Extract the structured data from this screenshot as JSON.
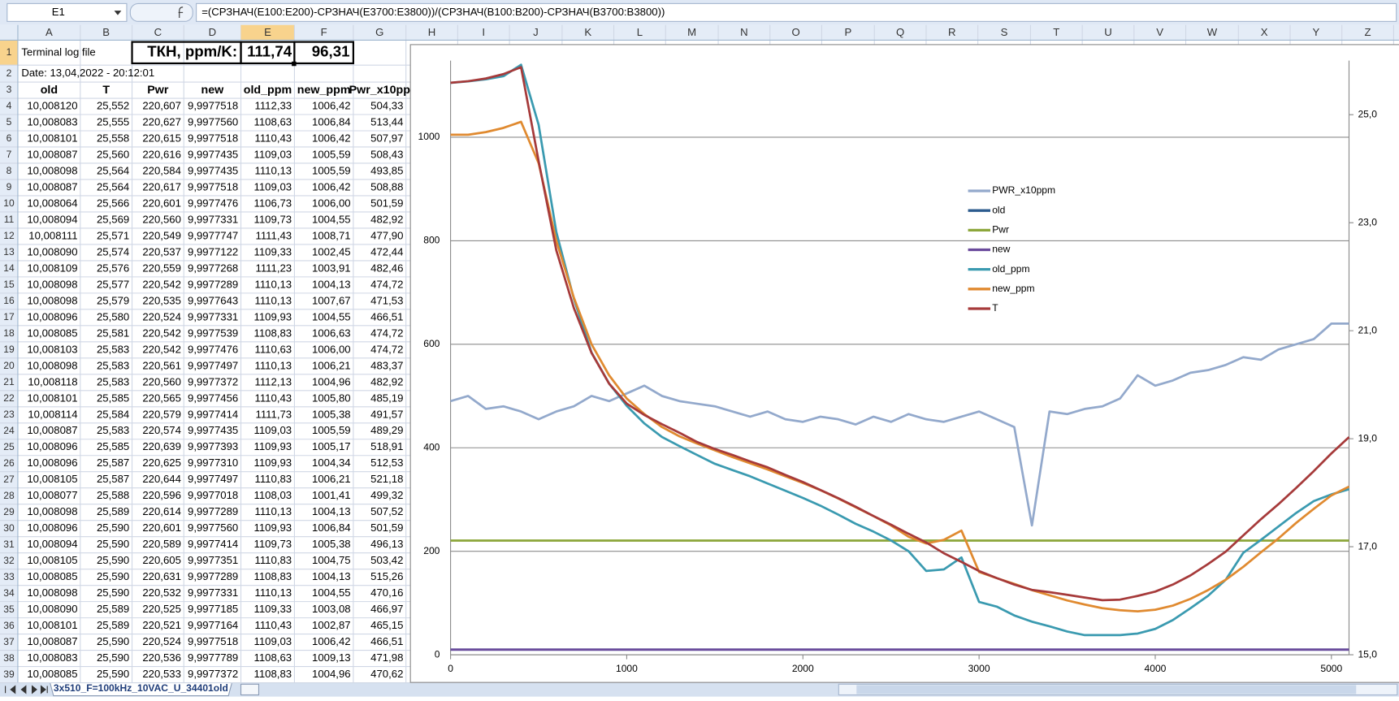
{
  "sheet": {
    "name_box": "E1",
    "formula": "=(СРЗНАЧ(E100:E200)-СРЗНАЧ(E3700:E3800))/(СРЗНАЧ(B100:B200)-СРЗНАЧ(B3700:B3800))",
    "columns": [
      "A",
      "B",
      "C",
      "D",
      "E",
      "F",
      "G",
      "H",
      "I",
      "J",
      "K",
      "L",
      "M",
      "N",
      "O",
      "P",
      "Q",
      "R",
      "S",
      "T",
      "U",
      "V",
      "W",
      "X",
      "Y",
      "Z"
    ],
    "row_numbers": [
      1,
      2,
      3,
      4,
      5,
      6,
      7,
      8,
      9,
      10,
      11,
      12,
      13,
      14,
      15,
      16,
      17,
      18,
      19,
      20,
      21,
      22,
      23,
      24,
      25,
      26,
      27,
      28,
      29,
      30,
      31,
      32,
      33,
      34,
      35,
      36,
      37,
      38,
      39
    ],
    "row1": {
      "title": "Terminal log file",
      "label": "ТКН, ppm/K:",
      "old_tkn": "111,74",
      "new_tkn": "96,31"
    },
    "row2": "Date: 13,04,2022 - 20:12:01",
    "header": [
      "old",
      "T",
      "Pwr",
      "new",
      "old_ppm",
      "new_ppm",
      "Pwr_x10pp"
    ],
    "rows": [
      [
        "10,008120",
        "25,552",
        "220,607",
        "9,9977518",
        "1112,33",
        "1006,42",
        "504,33"
      ],
      [
        "10,008083",
        "25,555",
        "220,627",
        "9,9977560",
        "1108,63",
        "1006,84",
        "513,44"
      ],
      [
        "10,008101",
        "25,558",
        "220,615",
        "9,9977518",
        "1110,43",
        "1006,42",
        "507,97"
      ],
      [
        "10,008087",
        "25,560",
        "220,616",
        "9,9977435",
        "1109,03",
        "1005,59",
        "508,43"
      ],
      [
        "10,008098",
        "25,564",
        "220,584",
        "9,9977435",
        "1110,13",
        "1005,59",
        "493,85"
      ],
      [
        "10,008087",
        "25,564",
        "220,617",
        "9,9977518",
        "1109,03",
        "1006,42",
        "508,88"
      ],
      [
        "10,008064",
        "25,566",
        "220,601",
        "9,9977476",
        "1106,73",
        "1006,00",
        "501,59"
      ],
      [
        "10,008094",
        "25,569",
        "220,560",
        "9,9977331",
        "1109,73",
        "1004,55",
        "482,92"
      ],
      [
        "10,008111",
        "25,571",
        "220,549",
        "9,9977747",
        "1111,43",
        "1008,71",
        "477,90"
      ],
      [
        "10,008090",
        "25,574",
        "220,537",
        "9,9977122",
        "1109,33",
        "1002,45",
        "472,44"
      ],
      [
        "10,008109",
        "25,576",
        "220,559",
        "9,9977268",
        "1111,23",
        "1003,91",
        "482,46"
      ],
      [
        "10,008098",
        "25,577",
        "220,542",
        "9,9977289",
        "1110,13",
        "1004,13",
        "474,72"
      ],
      [
        "10,008098",
        "25,579",
        "220,535",
        "9,9977643",
        "1110,13",
        "1007,67",
        "471,53"
      ],
      [
        "10,008096",
        "25,580",
        "220,524",
        "9,9977331",
        "1109,93",
        "1004,55",
        "466,51"
      ],
      [
        "10,008085",
        "25,581",
        "220,542",
        "9,9977539",
        "1108,83",
        "1006,63",
        "474,72"
      ],
      [
        "10,008103",
        "25,583",
        "220,542",
        "9,9977476",
        "1110,63",
        "1006,00",
        "474,72"
      ],
      [
        "10,008098",
        "25,583",
        "220,561",
        "9,9977497",
        "1110,13",
        "1006,21",
        "483,37"
      ],
      [
        "10,008118",
        "25,583",
        "220,560",
        "9,9977372",
        "1112,13",
        "1004,96",
        "482,92"
      ],
      [
        "10,008101",
        "25,585",
        "220,565",
        "9,9977456",
        "1110,43",
        "1005,80",
        "485,19"
      ],
      [
        "10,008114",
        "25,584",
        "220,579",
        "9,9977414",
        "1111,73",
        "1005,38",
        "491,57"
      ],
      [
        "10,008087",
        "25,583",
        "220,574",
        "9,9977435",
        "1109,03",
        "1005,59",
        "489,29"
      ],
      [
        "10,008096",
        "25,585",
        "220,639",
        "9,9977393",
        "1109,93",
        "1005,17",
        "518,91"
      ],
      [
        "10,008096",
        "25,587",
        "220,625",
        "9,9977310",
        "1109,93",
        "1004,34",
        "512,53"
      ],
      [
        "10,008105",
        "25,587",
        "220,644",
        "9,9977497",
        "1110,83",
        "1006,21",
        "521,18"
      ],
      [
        "10,008077",
        "25,588",
        "220,596",
        "9,9977018",
        "1108,03",
        "1001,41",
        "499,32"
      ],
      [
        "10,008098",
        "25,589",
        "220,614",
        "9,9977289",
        "1110,13",
        "1004,13",
        "507,52"
      ],
      [
        "10,008096",
        "25,590",
        "220,601",
        "9,9977560",
        "1109,93",
        "1006,84",
        "501,59"
      ],
      [
        "10,008094",
        "25,590",
        "220,589",
        "9,9977414",
        "1109,73",
        "1005,38",
        "496,13"
      ],
      [
        "10,008105",
        "25,590",
        "220,605",
        "9,9977351",
        "1110,83",
        "1004,75",
        "503,42"
      ],
      [
        "10,008085",
        "25,590",
        "220,631",
        "9,9977289",
        "1108,83",
        "1004,13",
        "515,26"
      ],
      [
        "10,008098",
        "25,590",
        "220,532",
        "9,9977331",
        "1110,13",
        "1004,55",
        "470,16"
      ],
      [
        "10,008090",
        "25,589",
        "220,525",
        "9,9977185",
        "1109,33",
        "1003,08",
        "466,97"
      ],
      [
        "10,008101",
        "25,589",
        "220,521",
        "9,9977164",
        "1110,43",
        "1002,87",
        "465,15"
      ],
      [
        "10,008087",
        "25,590",
        "220,524",
        "9,9977518",
        "1109,03",
        "1006,42",
        "466,51"
      ],
      [
        "10,008083",
        "25,590",
        "220,536",
        "9,9977789",
        "1108,63",
        "1009,13",
        "471,98"
      ],
      [
        "10,008085",
        "25,590",
        "220,533",
        "9,9977372",
        "1108,83",
        "1004,96",
        "470,62"
      ]
    ],
    "tab": "3x510_F=100kHz_10VAC_U_34401old"
  },
  "chart_data": {
    "type": "line",
    "x": [
      0,
      100,
      200,
      300,
      400,
      500,
      600,
      700,
      800,
      900,
      1000,
      1100,
      1200,
      1300,
      1400,
      1500,
      1600,
      1700,
      1800,
      1900,
      2000,
      2100,
      2200,
      2300,
      2400,
      2500,
      2600,
      2700,
      2800,
      2900,
      3000,
      3100,
      3200,
      3300,
      3400,
      3500,
      3600,
      3700,
      3800,
      3900,
      4000,
      4100,
      4200,
      4300,
      4400,
      4500,
      4600,
      4700,
      4800,
      4900,
      5000,
      5100
    ],
    "xlim": [
      0,
      5100
    ],
    "xticks": [
      0,
      1000,
      2000,
      3000,
      4000,
      5000
    ],
    "ylim": [
      0,
      1148
    ],
    "yticks": [
      0,
      200,
      400,
      600,
      800,
      1000
    ],
    "y2lim": [
      15,
      26
    ],
    "y2ticks": [
      {
        "value": 15,
        "label": "15,0"
      },
      {
        "value": 17,
        "label": "17,0"
      },
      {
        "value": 19,
        "label": "19,0"
      },
      {
        "value": 21,
        "label": "21,0"
      },
      {
        "value": 23,
        "label": "23,0"
      },
      {
        "value": 25,
        "label": "25,0"
      }
    ],
    "grid": true,
    "series": [
      {
        "name": "PWR_x10ppm",
        "color": "#93a9cc",
        "values": [
          490,
          500,
          475,
          480,
          470,
          455,
          470,
          480,
          500,
          490,
          505,
          520,
          500,
          490,
          485,
          480,
          470,
          460,
          470,
          455,
          450,
          460,
          455,
          445,
          460,
          450,
          465,
          455,
          450,
          460,
          470,
          455,
          440,
          250,
          470,
          465,
          475,
          480,
          495,
          540,
          520,
          530,
          545,
          550,
          560,
          575,
          570,
          590,
          600,
          610,
          640,
          640
        ]
      },
      {
        "name": "old",
        "color": "#2c5b8e",
        "values": [
          10,
          10,
          10,
          10,
          10,
          10,
          10,
          10,
          10,
          10,
          10,
          10,
          10,
          10,
          10,
          10,
          10,
          10,
          10,
          10,
          10,
          10,
          10,
          10,
          10,
          10,
          10,
          10,
          10,
          10,
          10,
          10,
          10,
          10,
          10,
          10,
          10,
          10,
          10,
          10,
          10,
          10,
          10,
          10,
          10,
          10,
          10,
          10,
          10,
          10,
          10,
          10
        ]
      },
      {
        "name": "Pwr",
        "color": "#8ca63a",
        "values": [
          220.6,
          220.6,
          220.6,
          220.6,
          220.6,
          220.6,
          220.6,
          220.6,
          220.6,
          220.6,
          220.6,
          220.6,
          220.6,
          220.6,
          220.6,
          220.6,
          220.6,
          220.6,
          220.6,
          220.6,
          220.6,
          220.6,
          220.6,
          220.6,
          220.6,
          220.6,
          220.6,
          220.6,
          220.6,
          220.6,
          220.6,
          220.6,
          220.6,
          220.6,
          220.6,
          220.6,
          220.6,
          220.6,
          220.6,
          220.6,
          220.6,
          220.6,
          220.6,
          220.6,
          220.6,
          220.6,
          220.6,
          220.6,
          220.6,
          220.6,
          220.6,
          220.6
        ]
      },
      {
        "name": "new",
        "color": "#6a4a9c",
        "values": [
          10,
          10,
          10,
          10,
          10,
          10,
          10,
          10,
          10,
          10,
          10,
          10,
          10,
          10,
          10,
          10,
          10,
          10,
          10,
          10,
          10,
          10,
          10,
          10,
          10,
          10,
          10,
          10,
          10,
          10,
          10,
          10,
          10,
          10,
          10,
          10,
          10,
          10,
          10,
          10,
          10,
          10,
          10,
          10,
          10,
          10,
          10,
          10,
          10,
          10,
          10,
          10
        ]
      },
      {
        "name": "old_ppm",
        "color": "#3a9ab0",
        "values": [
          1105,
          1108,
          1112,
          1118,
          1140,
          1024,
          817,
          688,
          584,
          524,
          481,
          447,
          421,
          403,
          386,
          369,
          357,
          345,
          331,
          317,
          303,
          288,
          271,
          253,
          238,
          221,
          200,
          162,
          165,
          188,
          102,
          93,
          76,
          64,
          55,
          45,
          38,
          38,
          38,
          41,
          50,
          67,
          90,
          114,
          145,
          197,
          222,
          248,
          274,
          297,
          310,
          320
        ]
      },
      {
        "name": "new_ppm",
        "color": "#e08a30",
        "values": [
          1005,
          1005,
          1010,
          1018,
          1030,
          950,
          800,
          690,
          600,
          540,
          495,
          465,
          440,
          422,
          408,
          395,
          382,
          370,
          358,
          345,
          332,
          318,
          302,
          285,
          268,
          250,
          228,
          215,
          222,
          240,
          160,
          148,
          137,
          125,
          115,
          105,
          97,
          90,
          86,
          84,
          87,
          95,
          108,
          125,
          145,
          170,
          198,
          225,
          255,
          282,
          308,
          325
        ]
      },
      {
        "name": "T",
        "color": "#a63a3a",
        "axis": "y2",
        "values": [
          25.59,
          25.62,
          25.67,
          25.75,
          25.88,
          24.14,
          22.49,
          21.42,
          20.59,
          20.02,
          19.65,
          19.44,
          19.27,
          19.11,
          18.94,
          18.81,
          18.7,
          18.58,
          18.47,
          18.33,
          18.2,
          18.05,
          17.9,
          17.74,
          17.57,
          17.41,
          17.24,
          17.08,
          16.88,
          16.72,
          16.55,
          16.42,
          16.3,
          16.2,
          16.16,
          16.11,
          16.06,
          16.01,
          16.02,
          16.09,
          16.17,
          16.3,
          16.47,
          16.68,
          16.91,
          17.21,
          17.51,
          17.79,
          18.09,
          18.4,
          18.73,
          19.03
        ]
      }
    ]
  }
}
